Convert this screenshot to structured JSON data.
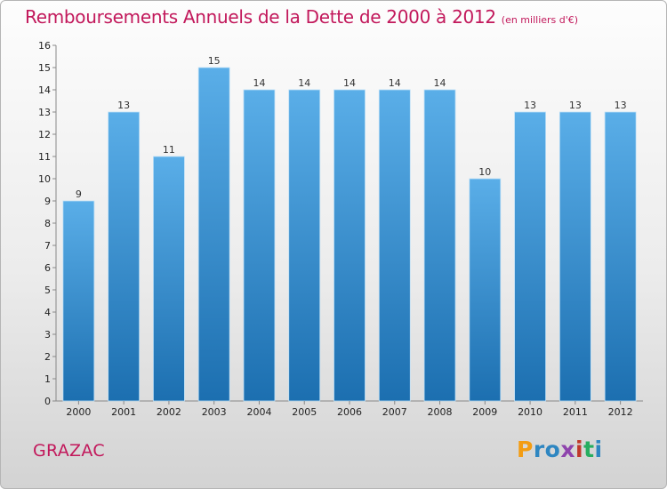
{
  "header": {
    "title": "Remboursements Annuels de la Dette de 2000 à 2012",
    "subtitle": "(en milliers d'€)"
  },
  "footer": {
    "commune": "GRAZAC",
    "logo": "Proxiti"
  },
  "colors": {
    "title": "#c2185b",
    "bar_light": "#5aaee8",
    "bar_dark": "#1c6fb0",
    "logo_letters": [
      "#f39c12",
      "#2e86c1",
      "#2e86c1",
      "#8e44ad",
      "#c0392b",
      "#27ae60",
      "#2e86c1"
    ]
  },
  "chart_data": {
    "type": "bar",
    "categories": [
      "2000",
      "2001",
      "2002",
      "2003",
      "2004",
      "2005",
      "2006",
      "2007",
      "2008",
      "2009",
      "2010",
      "2011",
      "2012"
    ],
    "values": [
      9,
      13,
      11,
      15,
      14,
      14,
      14,
      14,
      14,
      10,
      13,
      13,
      13
    ],
    "ylim": [
      0,
      16
    ],
    "yticks": [
      0,
      1,
      2,
      3,
      4,
      5,
      6,
      7,
      8,
      9,
      10,
      11,
      12,
      13,
      14,
      15,
      16
    ],
    "grid": false
  }
}
